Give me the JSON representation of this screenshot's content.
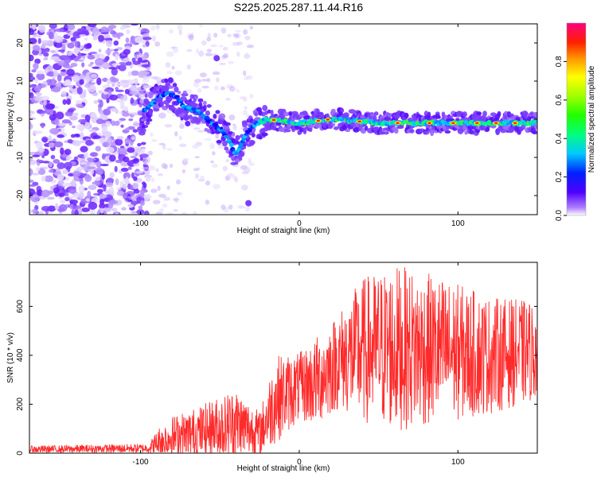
{
  "title": "S225.2025.287.11.44.R16",
  "chart_data": [
    {
      "type": "heatmap",
      "name": "spectrogram",
      "xlabel": "Height of straight line (km)",
      "ylabel": "Frequency (Hz)",
      "xlim": [
        -170,
        150
      ],
      "ylim": [
        -25,
        25
      ],
      "xticks": [
        -100,
        0,
        100
      ],
      "yticks": [
        -20,
        -10,
        0,
        10,
        20
      ],
      "colorbar": {
        "label": "Normalized spectral amplitude",
        "range": [
          0,
          1
        ],
        "ticks": [
          0.0,
          0.2,
          0.4,
          0.6,
          0.8
        ],
        "tick_labels": [
          "0.0",
          "0.2",
          "0.4",
          "0.6",
          "0.8"
        ]
      },
      "features": {
        "noise_region_x": [
          -170,
          -95
        ],
        "ridge_points": [
          {
            "x": -98,
            "y": 2
          },
          {
            "x": -90,
            "y": 5
          },
          {
            "x": -84,
            "y": 7
          },
          {
            "x": -78,
            "y": 6
          },
          {
            "x": -72,
            "y": 3
          },
          {
            "x": -64,
            "y": 2
          },
          {
            "x": -55,
            "y": -1
          },
          {
            "x": -48,
            "y": -3
          },
          {
            "x": -44,
            "y": -6
          },
          {
            "x": -40,
            "y": -9
          },
          {
            "x": -36,
            "y": -6
          },
          {
            "x": -32,
            "y": -3
          },
          {
            "x": -26,
            "y": -1
          },
          {
            "x": -20,
            "y": 0
          },
          {
            "x": 0,
            "y": -1
          },
          {
            "x": 20,
            "y": 0
          },
          {
            "x": 50,
            "y": -1
          },
          {
            "x": 100,
            "y": -1
          },
          {
            "x": 150,
            "y": -1
          }
        ]
      }
    },
    {
      "type": "line",
      "name": "snr",
      "xlabel": "Height of straight line (km)",
      "ylabel": "SNR (10 * v/v)",
      "xlim": [
        -170,
        150
      ],
      "ylim": [
        0,
        780
      ],
      "xticks": [
        -100,
        0,
        100
      ],
      "yticks": [
        0,
        200,
        400,
        600
      ],
      "color": "#ff2a2a",
      "envelope": [
        {
          "x": -170,
          "base": 15,
          "spread": 15
        },
        {
          "x": -95,
          "base": 20,
          "spread": 18
        },
        {
          "x": -85,
          "base": 60,
          "spread": 80
        },
        {
          "x": -60,
          "base": 90,
          "spread": 110
        },
        {
          "x": -40,
          "base": 120,
          "spread": 150
        },
        {
          "x": -25,
          "base": 80,
          "spread": 90
        },
        {
          "x": -15,
          "base": 220,
          "spread": 180
        },
        {
          "x": 0,
          "base": 270,
          "spread": 140
        },
        {
          "x": 10,
          "base": 290,
          "spread": 180
        },
        {
          "x": 25,
          "base": 380,
          "spread": 200
        },
        {
          "x": 40,
          "base": 420,
          "spread": 300
        },
        {
          "x": 60,
          "base": 430,
          "spread": 340
        },
        {
          "x": 90,
          "base": 420,
          "spread": 300
        },
        {
          "x": 120,
          "base": 400,
          "spread": 240
        },
        {
          "x": 150,
          "base": 420,
          "spread": 200
        }
      ]
    }
  ]
}
